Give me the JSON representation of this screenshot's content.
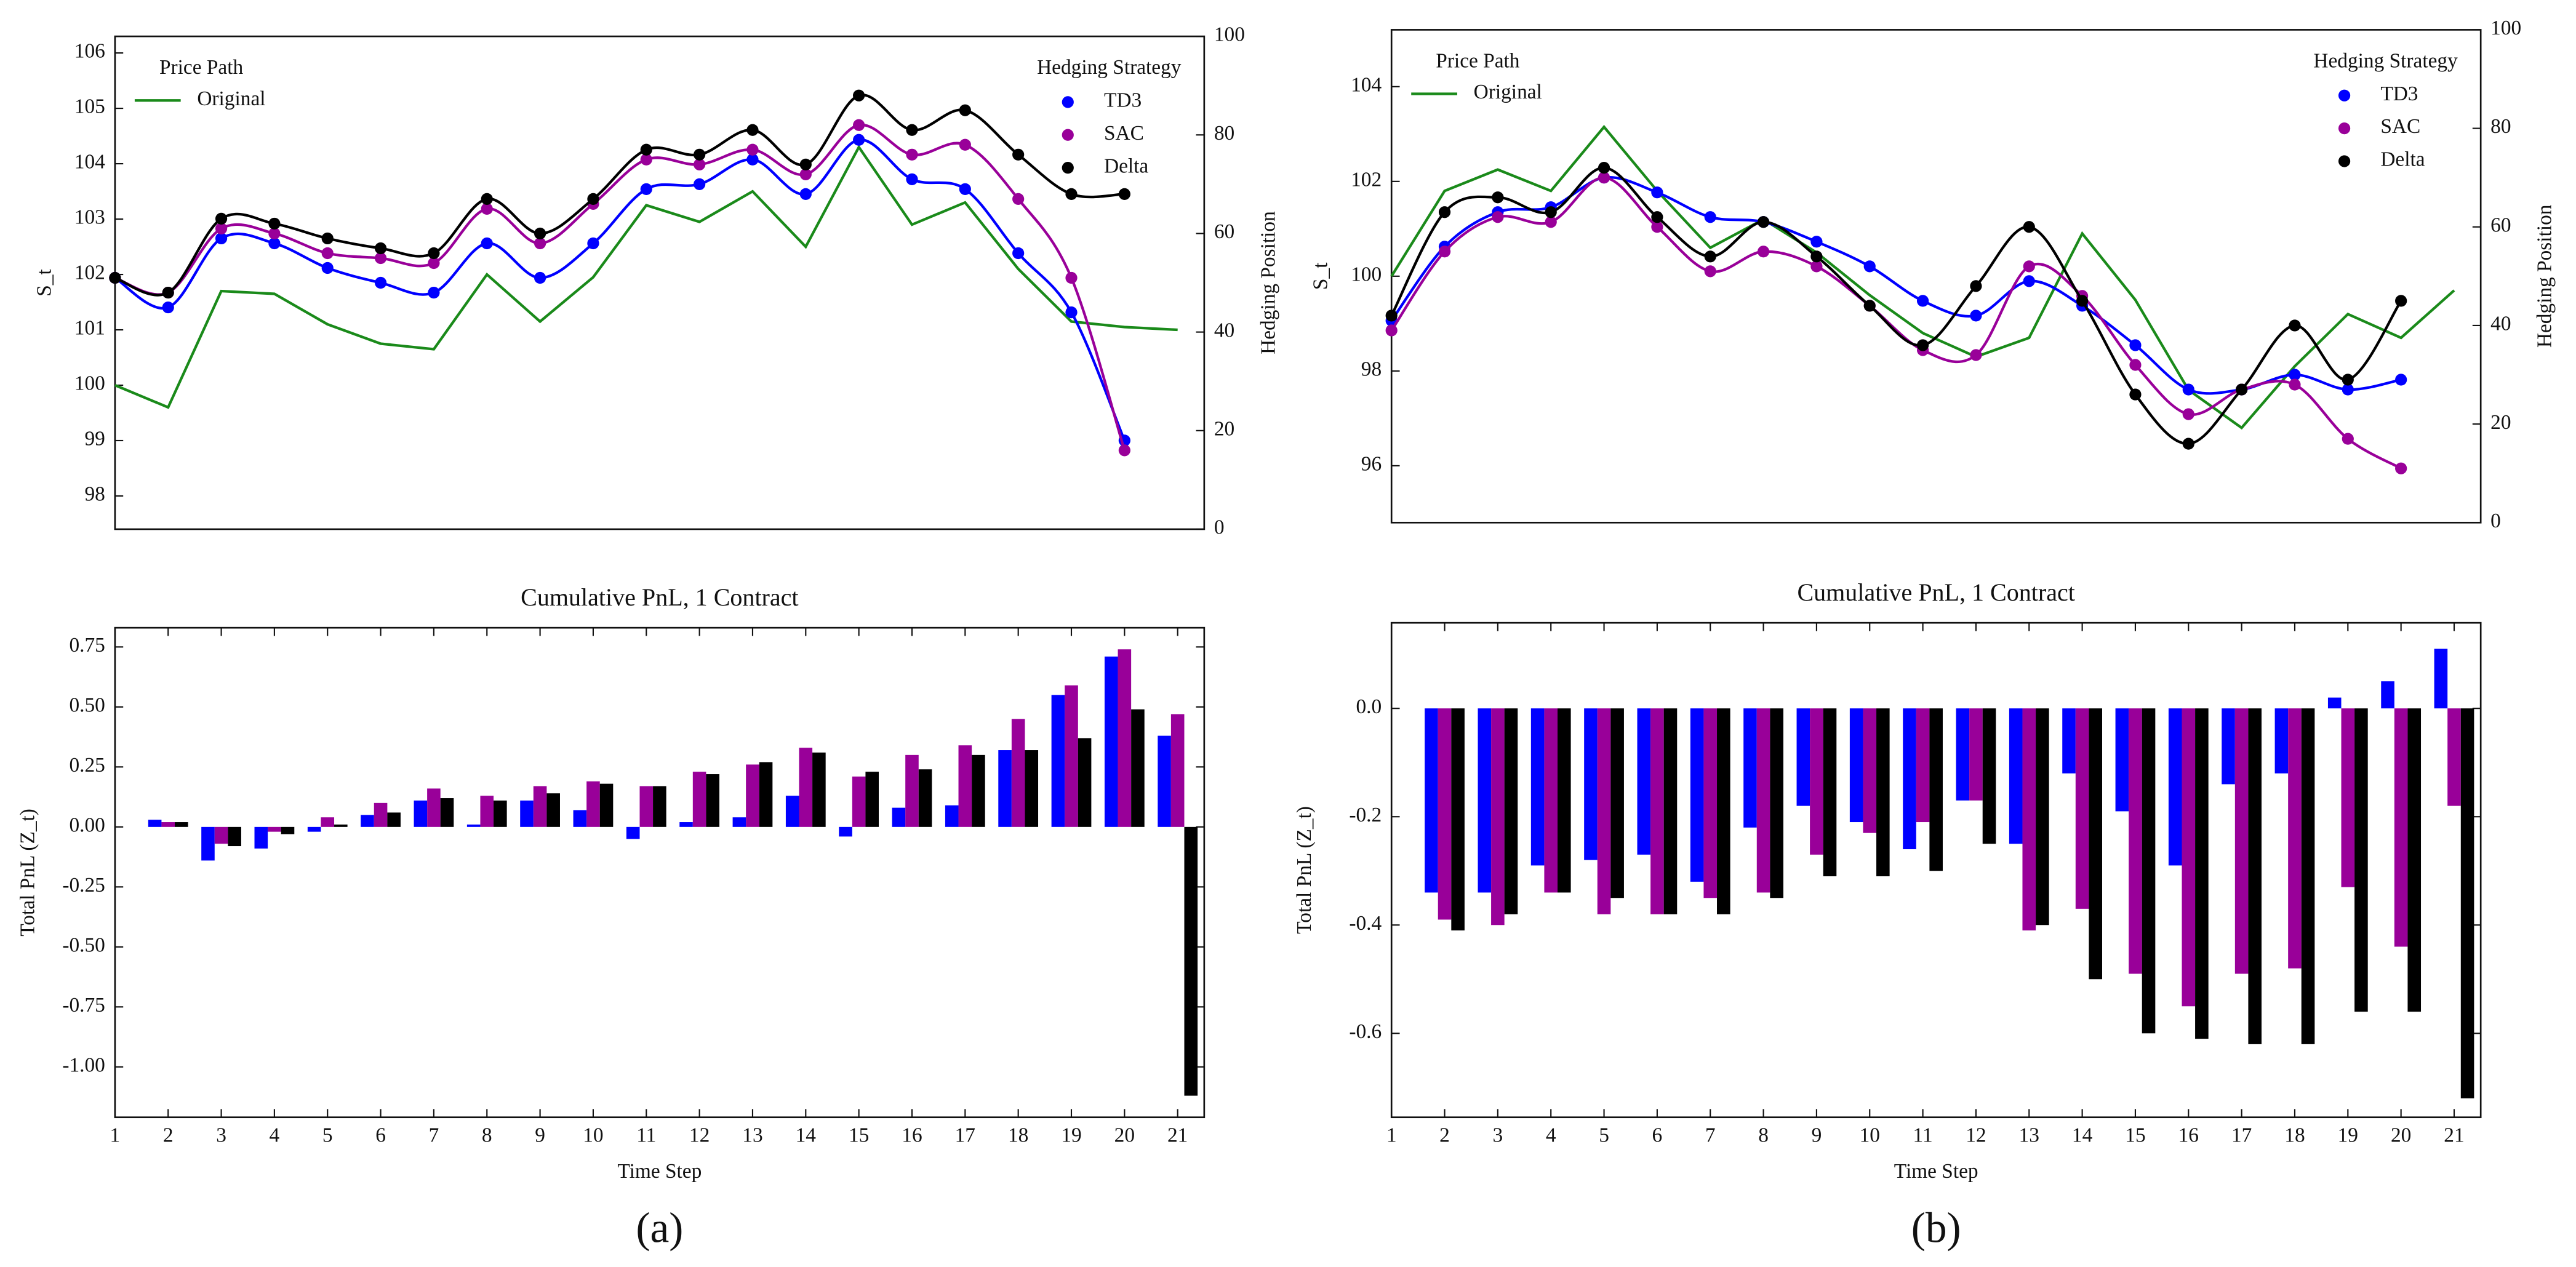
{
  "chart_data": [
    {
      "type": "line",
      "x": [
        1,
        2,
        3,
        4,
        5,
        6,
        7,
        8,
        9,
        10,
        11,
        12,
        13,
        14,
        15,
        16,
        17,
        18,
        19,
        20,
        21
      ],
      "xlim": [
        1,
        21.5
      ],
      "ylim": [
        97.4,
        106.3
      ],
      "yticks": [
        98,
        99,
        100,
        101,
        102,
        103,
        104,
        105,
        106
      ],
      "y2lim": [
        0,
        100
      ],
      "y2ticks": [
        0,
        20,
        40,
        60,
        80,
        100
      ],
      "ylabel": "S_t",
      "y2label": "Hedging Position",
      "legend_title": "Price Path",
      "legend2_title": "Hedging Strategy",
      "series": [
        {
          "name": "Original",
          "color": "#1a8a1a",
          "values": [
            100.0,
            99.6,
            101.7,
            101.65,
            101.1,
            100.75,
            100.65,
            102.0,
            101.15,
            101.95,
            103.25,
            102.95,
            103.5,
            102.5,
            104.3,
            102.9,
            103.3,
            102.1,
            101.15,
            101.05,
            101.0
          ]
        },
        {
          "name": "TD3",
          "color": "#0000ff",
          "axis": "y2",
          "values": [
            51,
            45,
            59,
            58,
            53,
            50,
            48,
            58,
            51,
            58,
            69,
            70,
            75,
            68,
            79,
            71,
            69,
            56,
            44,
            18,
            null
          ]
        },
        {
          "name": "SAC",
          "color": "#990099",
          "axis": "y2",
          "values": [
            51,
            48,
            61,
            60,
            56,
            55,
            54,
            65,
            58,
            66,
            75,
            74,
            77,
            72,
            82,
            76,
            78,
            67,
            51,
            16,
            null
          ]
        },
        {
          "name": "Delta",
          "color": "#000000",
          "axis": "y2",
          "values": [
            51,
            48,
            63,
            62,
            59,
            57,
            56,
            67,
            60,
            67,
            77,
            76,
            81,
            74,
            88,
            81,
            85,
            76,
            68,
            68,
            null
          ]
        }
      ]
    },
    {
      "type": "bar",
      "title": "Cumulative PnL, 1 Contract",
      "categories": [
        1,
        2,
        3,
        4,
        5,
        6,
        7,
        8,
        9,
        10,
        11,
        12,
        13,
        14,
        15,
        16,
        17,
        18,
        19,
        20,
        21
      ],
      "xlim": [
        1,
        21.5
      ],
      "ylim": [
        -1.21,
        0.83
      ],
      "yticks": [
        0.75,
        {
          "value": 0.5,
          "label": "0.50"
        },
        0.25,
        {
          "value": 0,
          "label": "0.00"
        },
        -0.25,
        {
          "value": -0.5,
          "label": "-0.50"
        },
        -0.75,
        {
          "value": -1,
          "label": "-1.00"
        }
      ],
      "xlabel": "Time Step",
      "ylabel": "Total PnL (Z_t)",
      "panel_label": "(a)",
      "series": [
        {
          "name": "TD3",
          "color": "#0000ff",
          "values": [
            null,
            0.03,
            -0.14,
            -0.09,
            -0.02,
            0.05,
            0.11,
            0.01,
            0.11,
            0.07,
            -0.05,
            0.02,
            0.04,
            0.13,
            -0.04,
            0.08,
            0.09,
            0.32,
            0.55,
            0.71,
            0.38
          ]
        },
        {
          "name": "SAC",
          "color": "#990099",
          "values": [
            null,
            0.02,
            -0.07,
            -0.02,
            0.04,
            0.1,
            0.16,
            0.13,
            0.17,
            0.19,
            0.17,
            0.23,
            0.26,
            0.33,
            0.21,
            0.3,
            0.34,
            0.45,
            0.59,
            0.74,
            0.47
          ]
        },
        {
          "name": "Delta",
          "color": "#000000",
          "values": [
            null,
            0.02,
            -0.08,
            -0.03,
            0.01,
            0.06,
            0.12,
            0.11,
            0.14,
            0.18,
            0.17,
            0.22,
            0.27,
            0.31,
            0.23,
            0.24,
            0.3,
            0.32,
            0.37,
            0.49,
            -1.12
          ]
        }
      ]
    },
    {
      "type": "line",
      "x": [
        1,
        2,
        3,
        4,
        5,
        6,
        7,
        8,
        9,
        10,
        11,
        12,
        13,
        14,
        15,
        16,
        17,
        18,
        19,
        20,
        21
      ],
      "xlim": [
        1,
        21.5
      ],
      "ylim": [
        94.8,
        105.2
      ],
      "yticks": [
        96,
        98,
        100,
        102,
        104
      ],
      "y2lim": [
        0,
        100
      ],
      "y2ticks": [
        0,
        20,
        40,
        60,
        80,
        100
      ],
      "ylabel": "S_t",
      "y2label": "Hedging Position",
      "legend_title": "Price Path",
      "legend2_title": "Hedging Strategy",
      "series": [
        {
          "name": "Original",
          "color": "#1a8a1a",
          "values": [
            100.0,
            101.8,
            102.25,
            101.8,
            103.15,
            101.8,
            100.6,
            101.2,
            100.5,
            99.6,
            98.8,
            98.3,
            98.7,
            100.9,
            99.5,
            97.6,
            96.8,
            98.1,
            99.2,
            98.7,
            99.7
          ]
        },
        {
          "name": "TD3",
          "color": "#0000ff",
          "axis": "y2",
          "values": [
            41,
            56,
            63,
            64,
            70,
            67,
            62,
            61,
            57,
            52,
            45,
            42,
            49,
            44,
            36,
            27,
            27,
            30,
            27,
            29,
            null
          ]
        },
        {
          "name": "SAC",
          "color": "#990099",
          "axis": "y2",
          "values": [
            39,
            55,
            62,
            61,
            70,
            60,
            51,
            55,
            52,
            44,
            35,
            34,
            52,
            46,
            32,
            22,
            27,
            28,
            17,
            11,
            null
          ]
        },
        {
          "name": "Delta",
          "color": "#000000",
          "axis": "y2",
          "values": [
            42,
            63,
            66,
            63,
            72,
            62,
            54,
            61,
            54,
            44,
            36,
            48,
            60,
            45,
            26,
            16,
            27,
            40,
            29,
            45,
            null
          ]
        }
      ]
    },
    {
      "type": "bar",
      "title": "Cumulative PnL, 1 Contract",
      "categories": [
        1,
        2,
        3,
        4,
        5,
        6,
        7,
        8,
        9,
        10,
        11,
        12,
        13,
        14,
        15,
        16,
        17,
        18,
        19,
        20,
        21
      ],
      "xlim": [
        1,
        21.5
      ],
      "ylim": [
        -0.755,
        0.158
      ],
      "yticks": [
        {
          "value": 0,
          "label": "0.0"
        },
        -0.2,
        -0.4,
        -0.6
      ],
      "xlabel": "Time Step",
      "ylabel": "Total PnL (Z_t)",
      "panel_label": "(b)",
      "series": [
        {
          "name": "TD3",
          "color": "#0000ff",
          "values": [
            null,
            -0.34,
            -0.34,
            -0.29,
            -0.28,
            -0.27,
            -0.32,
            -0.22,
            -0.18,
            -0.21,
            -0.26,
            -0.17,
            -0.25,
            -0.12,
            -0.19,
            -0.29,
            -0.14,
            -0.12,
            0.02,
            0.05,
            0.11
          ]
        },
        {
          "name": "SAC",
          "color": "#990099",
          "values": [
            null,
            -0.39,
            -0.4,
            -0.34,
            -0.38,
            -0.38,
            -0.35,
            -0.34,
            -0.27,
            -0.23,
            -0.21,
            -0.17,
            -0.41,
            -0.37,
            -0.49,
            -0.55,
            -0.49,
            -0.48,
            -0.33,
            -0.44,
            -0.18
          ]
        },
        {
          "name": "Delta",
          "color": "#000000",
          "values": [
            null,
            -0.41,
            -0.38,
            -0.34,
            -0.35,
            -0.38,
            -0.38,
            -0.35,
            -0.31,
            -0.31,
            -0.3,
            -0.25,
            -0.4,
            -0.5,
            -0.6,
            -0.61,
            -0.62,
            -0.62,
            -0.56,
            -0.56,
            -0.72
          ]
        }
      ]
    }
  ]
}
